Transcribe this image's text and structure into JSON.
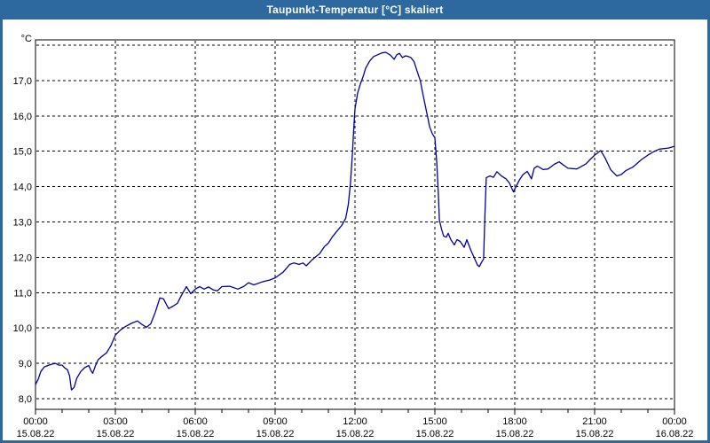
{
  "window": {
    "title": "Taupunkt-Temperatur [°C] skaliert",
    "title_bar_color": "#2d699e",
    "frame_color": "#2d699e",
    "plot_background": "#ffffff"
  },
  "chart_data": {
    "type": "line",
    "title": "Taupunkt-Temperatur [°C] skaliert",
    "y_unit_label": "°C",
    "grid": "dashed",
    "legend": "none",
    "line_color": "#0000a0",
    "xlim": [
      0,
      24
    ],
    "ylim": [
      7.7,
      18.15
    ],
    "y_gridlines": [
      8,
      9,
      10,
      11,
      12,
      13,
      14,
      15,
      16,
      17,
      18
    ],
    "y_ticks": [
      {
        "value": 8,
        "label": "8,0"
      },
      {
        "value": 9,
        "label": "9,0"
      },
      {
        "value": 10,
        "label": "10,0"
      },
      {
        "value": 11,
        "label": "11,0"
      },
      {
        "value": 12,
        "label": "12,0"
      },
      {
        "value": 13,
        "label": "13,0"
      },
      {
        "value": 14,
        "label": "14,0"
      },
      {
        "value": 15,
        "label": "15,0"
      },
      {
        "value": 16,
        "label": "16,0"
      },
      {
        "value": 17,
        "label": "17,0"
      }
    ],
    "x_major_ticks": [
      0,
      3,
      6,
      9,
      12,
      15,
      18,
      21,
      24
    ],
    "x_minor_step_hours": 1,
    "x_tick_labels": [
      {
        "time": "00:00",
        "date": "15.08.22"
      },
      {
        "time": "03:00",
        "date": "15.08.22"
      },
      {
        "time": "06:00",
        "date": "15.08.22"
      },
      {
        "time": "09:00",
        "date": "15.08.22"
      },
      {
        "time": "12:00",
        "date": "15.08.22"
      },
      {
        "time": "15:00",
        "date": "15.08.22"
      },
      {
        "time": "18:00",
        "date": "15.08.22"
      },
      {
        "time": "21:00",
        "date": "15.08.22"
      },
      {
        "time": "00:00",
        "date": "16.08.22"
      }
    ],
    "series": [
      {
        "name": "Taupunkt-Temperatur",
        "points": [
          [
            0.0,
            8.4
          ],
          [
            0.1,
            8.55
          ],
          [
            0.2,
            8.77
          ],
          [
            0.33,
            8.9
          ],
          [
            0.5,
            8.95
          ],
          [
            0.63,
            8.98
          ],
          [
            0.75,
            9.0
          ],
          [
            0.87,
            8.95
          ],
          [
            1.0,
            8.95
          ],
          [
            1.1,
            8.87
          ],
          [
            1.2,
            8.82
          ],
          [
            1.28,
            8.65
          ],
          [
            1.35,
            8.25
          ],
          [
            1.45,
            8.32
          ],
          [
            1.55,
            8.58
          ],
          [
            1.7,
            8.77
          ],
          [
            1.85,
            8.88
          ],
          [
            2.0,
            8.94
          ],
          [
            2.08,
            8.8
          ],
          [
            2.15,
            8.72
          ],
          [
            2.25,
            8.93
          ],
          [
            2.35,
            9.1
          ],
          [
            2.5,
            9.2
          ],
          [
            2.67,
            9.3
          ],
          [
            2.83,
            9.5
          ],
          [
            3.0,
            9.8
          ],
          [
            3.2,
            9.95
          ],
          [
            3.4,
            10.05
          ],
          [
            3.6,
            10.13
          ],
          [
            3.83,
            10.2
          ],
          [
            4.0,
            10.1
          ],
          [
            4.17,
            10.02
          ],
          [
            4.33,
            10.12
          ],
          [
            4.5,
            10.45
          ],
          [
            4.67,
            10.85
          ],
          [
            4.8,
            10.83
          ],
          [
            5.0,
            10.55
          ],
          [
            5.17,
            10.62
          ],
          [
            5.33,
            10.7
          ],
          [
            5.5,
            10.95
          ],
          [
            5.67,
            11.17
          ],
          [
            5.83,
            10.97
          ],
          [
            6.0,
            11.1
          ],
          [
            6.17,
            11.17
          ],
          [
            6.33,
            11.1
          ],
          [
            6.5,
            11.16
          ],
          [
            6.67,
            11.08
          ],
          [
            6.83,
            11.05
          ],
          [
            7.0,
            11.17
          ],
          [
            7.3,
            11.18
          ],
          [
            7.6,
            11.1
          ],
          [
            7.83,
            11.18
          ],
          [
            8.0,
            11.28
          ],
          [
            8.2,
            11.22
          ],
          [
            8.5,
            11.3
          ],
          [
            8.8,
            11.36
          ],
          [
            9.0,
            11.42
          ],
          [
            9.3,
            11.58
          ],
          [
            9.55,
            11.8
          ],
          [
            9.7,
            11.84
          ],
          [
            9.9,
            11.8
          ],
          [
            10.05,
            11.84
          ],
          [
            10.17,
            11.76
          ],
          [
            10.35,
            11.9
          ],
          [
            10.5,
            12.0
          ],
          [
            10.67,
            12.1
          ],
          [
            10.85,
            12.3
          ],
          [
            11.0,
            12.4
          ],
          [
            11.15,
            12.58
          ],
          [
            11.3,
            12.72
          ],
          [
            11.5,
            12.9
          ],
          [
            11.65,
            13.1
          ],
          [
            11.75,
            13.5
          ],
          [
            11.83,
            14.1
          ],
          [
            11.9,
            14.9
          ],
          [
            11.95,
            15.6
          ],
          [
            12.0,
            16.2
          ],
          [
            12.1,
            16.65
          ],
          [
            12.2,
            16.9
          ],
          [
            12.3,
            17.1
          ],
          [
            12.4,
            17.35
          ],
          [
            12.55,
            17.55
          ],
          [
            12.7,
            17.68
          ],
          [
            12.85,
            17.73
          ],
          [
            13.0,
            17.78
          ],
          [
            13.15,
            17.8
          ],
          [
            13.33,
            17.72
          ],
          [
            13.47,
            17.6
          ],
          [
            13.57,
            17.73
          ],
          [
            13.67,
            17.77
          ],
          [
            13.78,
            17.65
          ],
          [
            13.9,
            17.7
          ],
          [
            14.0,
            17.68
          ],
          [
            14.1,
            17.65
          ],
          [
            14.22,
            17.53
          ],
          [
            14.33,
            17.27
          ],
          [
            14.45,
            17.0
          ],
          [
            14.55,
            16.62
          ],
          [
            14.65,
            16.25
          ],
          [
            14.72,
            16.0
          ],
          [
            14.8,
            15.7
          ],
          [
            14.9,
            15.5
          ],
          [
            15.0,
            15.38
          ],
          [
            15.07,
            14.7
          ],
          [
            15.13,
            13.8
          ],
          [
            15.17,
            13.05
          ],
          [
            15.25,
            12.8
          ],
          [
            15.33,
            12.6
          ],
          [
            15.43,
            12.57
          ],
          [
            15.5,
            12.68
          ],
          [
            15.6,
            12.5
          ],
          [
            15.73,
            12.35
          ],
          [
            15.83,
            12.5
          ],
          [
            15.95,
            12.45
          ],
          [
            16.1,
            12.28
          ],
          [
            16.2,
            12.5
          ],
          [
            16.35,
            12.2
          ],
          [
            16.5,
            11.95
          ],
          [
            16.6,
            11.78
          ],
          [
            16.67,
            11.74
          ],
          [
            16.77,
            11.88
          ],
          [
            16.83,
            11.95
          ],
          [
            16.88,
            13.2
          ],
          [
            16.93,
            14.25
          ],
          [
            17.07,
            14.3
          ],
          [
            17.2,
            14.26
          ],
          [
            17.33,
            14.42
          ],
          [
            17.5,
            14.3
          ],
          [
            17.67,
            14.22
          ],
          [
            17.8,
            14.1
          ],
          [
            17.95,
            13.85
          ],
          [
            18.0,
            13.93
          ],
          [
            18.17,
            14.18
          ],
          [
            18.3,
            14.33
          ],
          [
            18.47,
            14.43
          ],
          [
            18.63,
            14.22
          ],
          [
            18.73,
            14.52
          ],
          [
            18.85,
            14.58
          ],
          [
            19.07,
            14.48
          ],
          [
            19.25,
            14.5
          ],
          [
            19.5,
            14.64
          ],
          [
            19.67,
            14.7
          ],
          [
            19.83,
            14.61
          ],
          [
            20.0,
            14.52
          ],
          [
            20.33,
            14.5
          ],
          [
            20.67,
            14.64
          ],
          [
            20.85,
            14.78
          ],
          [
            21.0,
            14.89
          ],
          [
            21.23,
            15.02
          ],
          [
            21.4,
            14.8
          ],
          [
            21.6,
            14.48
          ],
          [
            21.83,
            14.3
          ],
          [
            22.0,
            14.34
          ],
          [
            22.17,
            14.45
          ],
          [
            22.43,
            14.55
          ],
          [
            22.77,
            14.77
          ],
          [
            23.0,
            14.89
          ],
          [
            23.2,
            14.98
          ],
          [
            23.43,
            15.06
          ],
          [
            23.77,
            15.09
          ],
          [
            24.0,
            15.14
          ]
        ]
      }
    ]
  }
}
